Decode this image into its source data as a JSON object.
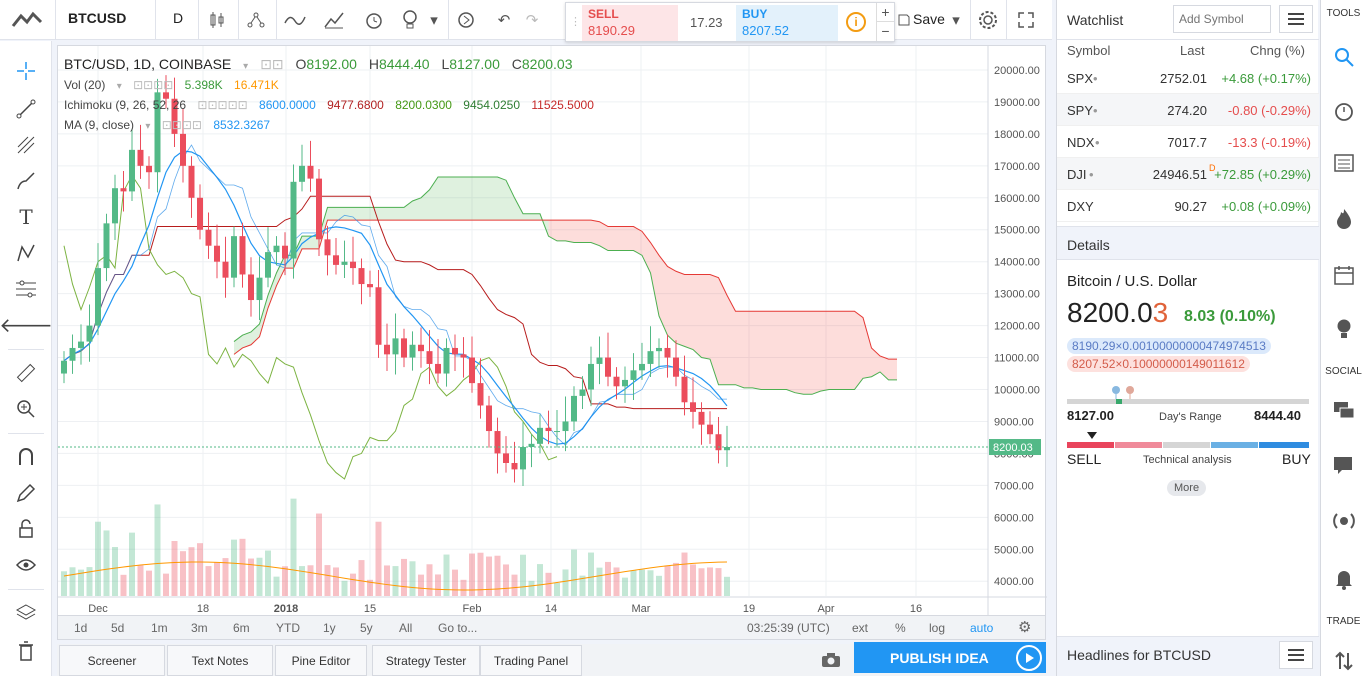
{
  "topbar": {
    "symbol": "BTCUSD",
    "timeframe": "D",
    "save_label": "Save",
    "trade": {
      "sell_label": "SELL",
      "sell_price": "8190.29",
      "spread": "17.23",
      "buy_label": "BUY",
      "buy_price": "8207.52"
    }
  },
  "legend": {
    "title": "BTC/USD, 1D, COINBASE",
    "o_label": "O",
    "o": "8192.00",
    "h_label": "H",
    "h": "8444.40",
    "l_label": "L",
    "l": "8127.00",
    "c_label": "C",
    "c": "8200.03",
    "vol_label": "Vol (20)",
    "vol1": "5.398K",
    "vol2": "16.471K",
    "ichi_label": "Ichimoku (9, 26, 52, 26",
    "ichi_values": [
      "8600.0000",
      "9477.6800",
      "8200.0300",
      "9454.0250",
      "11525.5000"
    ],
    "ma_label": "MA (9, close)",
    "ma_value": "8532.3267"
  },
  "price_axis": [
    "20000.00",
    "19000.00",
    "18000.00",
    "17000.00",
    "16000.00",
    "15000.00",
    "14000.00",
    "13000.00",
    "12000.00",
    "11000.00",
    "10000.00",
    "9000.00",
    "8000.00",
    "7000.00",
    "6000.00",
    "5000.00",
    "4000.00"
  ],
  "last_price_tag": "8200.03",
  "time_axis": [
    "Dec",
    "18",
    "2018",
    "15",
    "Feb",
    "14",
    "Mar",
    "19",
    "Apr",
    "16"
  ],
  "bottom_timeframes": [
    "1d",
    "5d",
    "1m",
    "3m",
    "6m",
    "YTD",
    "1y",
    "5y",
    "All",
    "Go to..."
  ],
  "bottom_right": {
    "time": "03:25:39 (UTC)",
    "ext": "ext",
    "pct": "%",
    "log": "log",
    "auto": "auto"
  },
  "tabs": [
    "Screener",
    "Text Notes",
    "Pine Editor",
    "Strategy Tester",
    "Trading Panel"
  ],
  "publish_label": "PUBLISH IDEA",
  "watchlist": {
    "title": "Watchlist",
    "add_placeholder": "Add Symbol",
    "headers": {
      "symbol": "Symbol",
      "last": "Last",
      "chng": "Chng (%)"
    },
    "rows": [
      {
        "symbol": "SPX",
        "last": "2752.01",
        "chng": "+4.68 (+0.17%)",
        "up": true
      },
      {
        "symbol": "SPY",
        "last": "274.20",
        "chng": "-0.80 (-0.29%)",
        "up": false
      },
      {
        "symbol": "NDX",
        "last": "7017.7",
        "chng": "-13.3 (-0.19%)",
        "up": false
      },
      {
        "symbol": "DJI",
        "last": "24946.51",
        "chng": "+72.85 (+0.29%)",
        "up": true,
        "badge": "D"
      },
      {
        "symbol": "DXY",
        "last": "90.27",
        "chng": "+0.08 (+0.09%)",
        "up": true
      }
    ]
  },
  "details": {
    "title": "Details",
    "name": "Bitcoin / U.S. Dollar",
    "price_main": "8200.0",
    "price_last": "3",
    "change": "8.03 (0.10%)",
    "bid": "8190.29×0.00100000000474974513",
    "ask": "8207.52×0.10000000149011612",
    "low": "8127.00",
    "range_label": "Day's Range",
    "high": "8444.40",
    "sell": "SELL",
    "ta_label": "Technical analysis",
    "buy": "BUY",
    "more": "More"
  },
  "headlines": "Headlines for BTCUSD",
  "rightbar": {
    "tools_label": "TOOLS",
    "social_label": "SOCIAL",
    "trade_label": "TRADE"
  },
  "colors": {
    "up": "#53b987",
    "down": "#eb4d5c",
    "accent": "#2196f3",
    "ma": "#2196f3"
  },
  "chart_data": {
    "type": "candlestick",
    "title": "BTC/USD, 1D, COINBASE",
    "ylim": [
      3600,
      20500
    ],
    "ohlc_close_series": [
      10900,
      11300,
      11500,
      12000,
      13800,
      15200,
      16300,
      16200,
      17500,
      17000,
      16800,
      19300,
      19100,
      18000,
      17000,
      16000,
      15000,
      14500,
      14000,
      13500,
      14800,
      13600,
      12800,
      13500,
      14300,
      14500,
      14100,
      16500,
      17000,
      16600,
      14700,
      14200,
      13900,
      14000,
      13800,
      13300,
      13200,
      11400,
      11100,
      11600,
      11000,
      11400,
      11200,
      10800,
      10500,
      11300,
      11100,
      11000,
      10200,
      9500,
      8700,
      8000,
      7700,
      7500,
      8200,
      8300,
      8800,
      8700,
      8700,
      9000,
      9800,
      10000,
      10800,
      11000,
      10400,
      10100,
      10300,
      10600,
      10800,
      11200,
      11300,
      11000,
      10400,
      9600,
      9300,
      8900,
      8600,
      8100,
      8200
    ],
    "volume_max": 16.471
  }
}
